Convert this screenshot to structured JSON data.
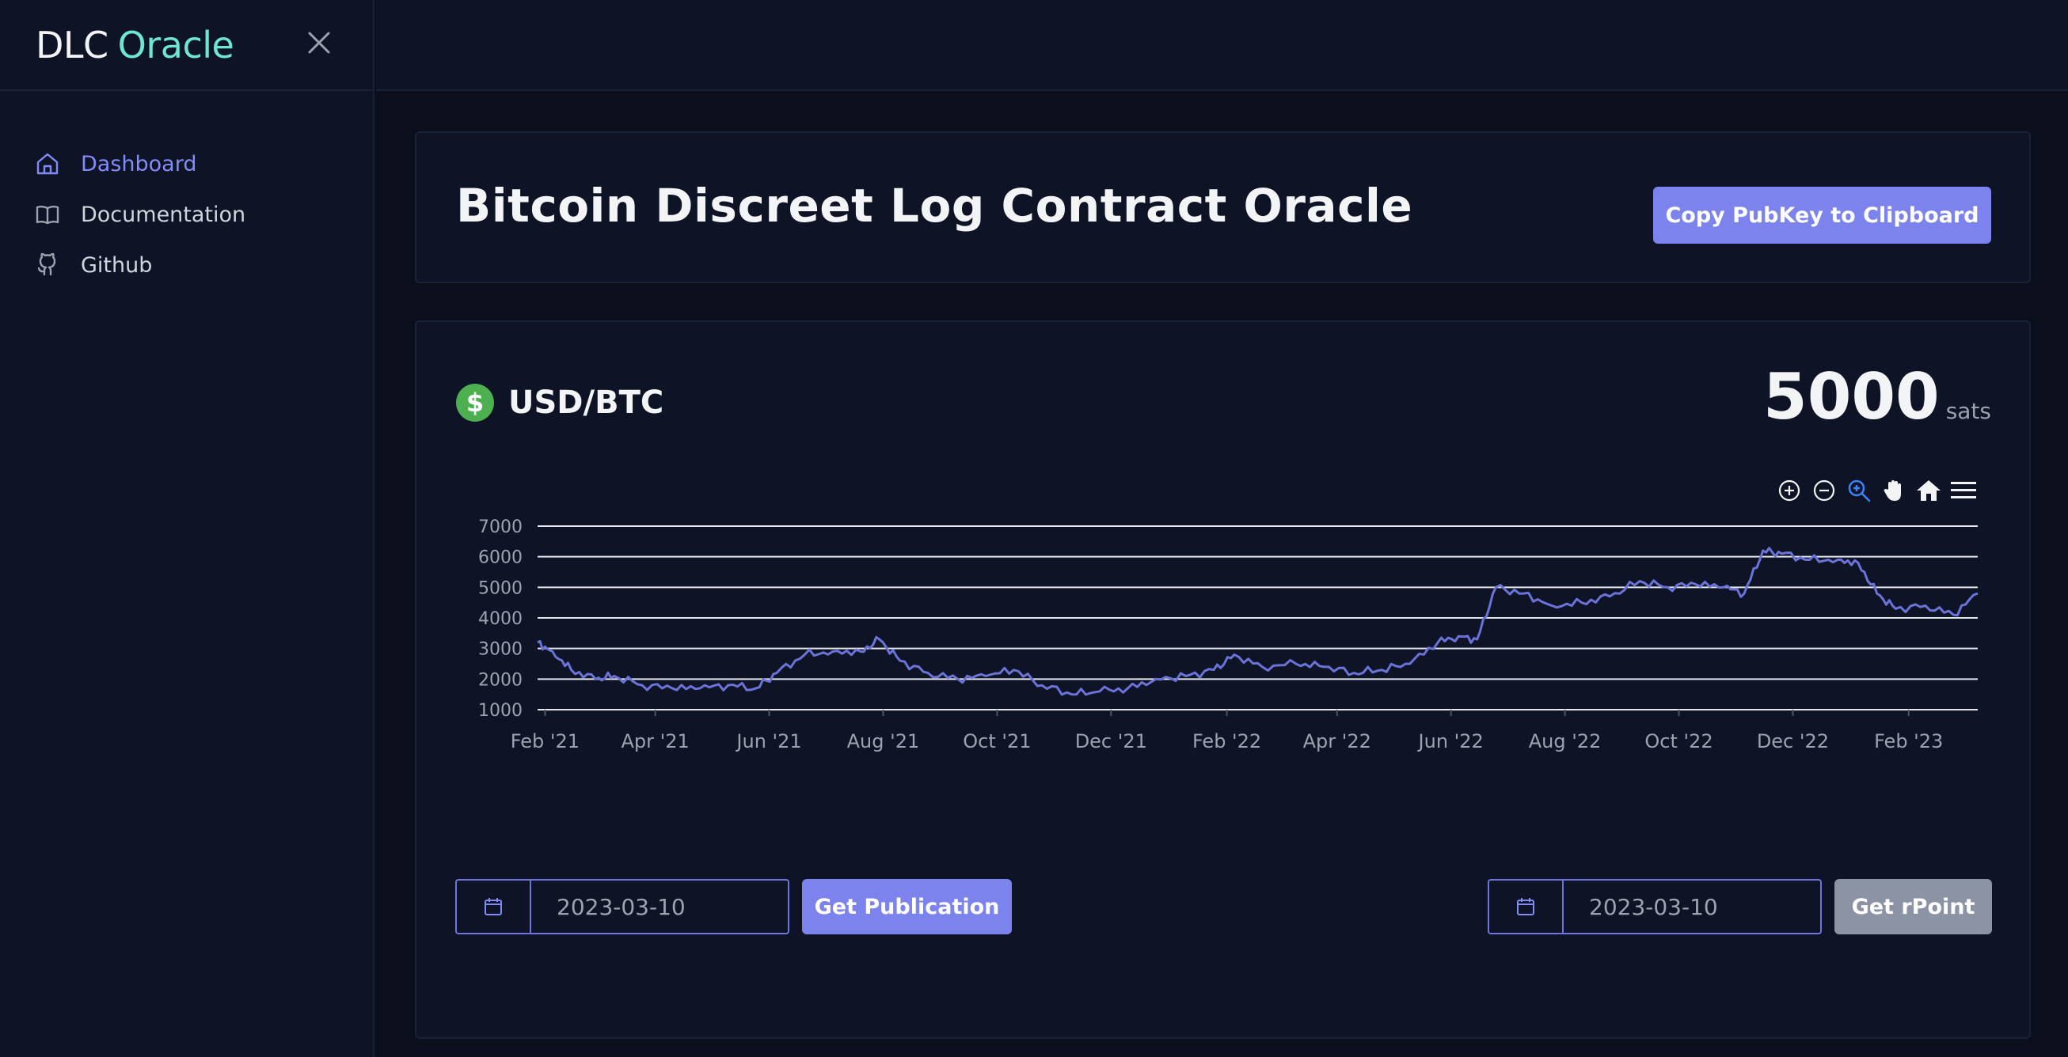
{
  "brand": {
    "name": "DLC",
    "accent": "Oracle"
  },
  "nav": {
    "items": [
      {
        "label": "Dashboard",
        "icon": "home-icon",
        "active": true
      },
      {
        "label": "Documentation",
        "icon": "book-icon",
        "active": false
      },
      {
        "label": "Github",
        "icon": "github-icon",
        "active": false
      }
    ]
  },
  "header": {
    "title": "Bitcoin Discreet Log Contract Oracle",
    "copy_button": "Copy PubKey to Clipboard"
  },
  "asset": {
    "icon": "dollar-icon",
    "name": "USD/BTC",
    "price": "5000",
    "unit": "sats"
  },
  "toolbar": {
    "tools": [
      "zoom-in-icon",
      "zoom-out-icon",
      "selection-zoom-icon",
      "pan-icon",
      "reset-home-icon",
      "menu-icon"
    ]
  },
  "controls": {
    "left_date": "2023-03-10",
    "publication_button": "Get Publication",
    "right_date": "2023-03-10",
    "rpoint_button": "Get rPoint"
  },
  "colors": {
    "accent": "#7c83ec",
    "series": "#6a73d8",
    "background": "#0e1326",
    "brand_accent": "#6ee7d1",
    "disabled_button": "#8b93a4"
  },
  "chart_data": {
    "type": "line",
    "title": "",
    "xlabel": "",
    "ylabel": "",
    "ylim": [
      1000,
      7000
    ],
    "yticks": [
      7000,
      6000,
      5000,
      4000,
      3000,
      2000,
      1000
    ],
    "xticks": [
      "Feb '21",
      "Apr '21",
      "Jun '21",
      "Aug '21",
      "Oct '21",
      "Dec '21",
      "Feb '22",
      "Apr '22",
      "Jun '22",
      "Aug '22",
      "Oct '22",
      "Dec '22",
      "Feb '23"
    ],
    "grid": true,
    "x": [
      "2021-01-28",
      "2021-02-05",
      "2021-02-15",
      "2021-02-28",
      "2021-03-10",
      "2021-03-25",
      "2021-04-10",
      "2021-04-25",
      "2021-05-10",
      "2021-05-25",
      "2021-06-05",
      "2021-06-20",
      "2021-07-05",
      "2021-07-20",
      "2021-07-30",
      "2021-08-10",
      "2021-08-25",
      "2021-09-10",
      "2021-09-25",
      "2021-10-10",
      "2021-10-25",
      "2021-11-10",
      "2021-11-25",
      "2021-12-10",
      "2021-12-25",
      "2022-01-10",
      "2022-01-25",
      "2022-02-05",
      "2022-02-20",
      "2022-03-10",
      "2022-03-25",
      "2022-04-10",
      "2022-04-25",
      "2022-05-10",
      "2022-05-25",
      "2022-06-05",
      "2022-06-15",
      "2022-06-25",
      "2022-07-10",
      "2022-07-25",
      "2022-08-10",
      "2022-08-25",
      "2022-09-10",
      "2022-09-25",
      "2022-10-10",
      "2022-10-25",
      "2022-11-05",
      "2022-11-15",
      "2022-11-25",
      "2022-12-10",
      "2022-12-25",
      "2023-01-05",
      "2023-01-15",
      "2023-01-25",
      "2023-02-10",
      "2023-02-25",
      "2023-03-10"
    ],
    "series": [
      {
        "values": [
          3200,
          2900,
          2300,
          2000,
          2100,
          1800,
          1700,
          1700,
          1800,
          1700,
          2200,
          2800,
          2900,
          2900,
          3300,
          2600,
          2200,
          2000,
          2100,
          2300,
          1800,
          1500,
          1600,
          1700,
          2000,
          2100,
          2300,
          2800,
          2400,
          2500,
          2400,
          2200,
          2300,
          2500,
          3200,
          3400,
          3300,
          5000,
          4800,
          4400,
          4500,
          4700,
          5200,
          5000,
          5100,
          5000,
          4800,
          6200,
          6100,
          5900,
          5900,
          5800,
          4800,
          4300,
          4400,
          4100,
          4800
        ]
      }
    ]
  }
}
